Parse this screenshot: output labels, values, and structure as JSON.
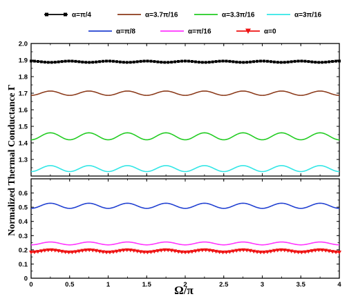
{
  "chart_data": {
    "type": "line",
    "xlabel": "Ω/π",
    "ylabel": "Normalized Thermal Conductance Γ",
    "xlim": [
      0,
      4
    ],
    "x_ticks": [
      "0",
      "0.5",
      "1",
      "1.5",
      "2",
      "2.5",
      "3",
      "3.5",
      "4"
    ],
    "grid": false,
    "legend_position": "top",
    "panels": [
      {
        "name": "upper",
        "ylim": [
          1.2,
          2.0
        ],
        "y_ticks": [
          "1.3",
          "1.4",
          "1.5",
          "1.6",
          "1.7",
          "1.8",
          "1.9",
          "2.0"
        ]
      },
      {
        "name": "lower",
        "ylim": [
          0.0,
          0.7
        ],
        "y_ticks": [
          "0",
          "0.1",
          "0.2",
          "0.3",
          "0.4",
          "0.5",
          "0.6"
        ]
      }
    ],
    "series": [
      {
        "name": "α=π/4",
        "color": "#000000",
        "marker": "square",
        "panel": "upper",
        "mean": 1.89,
        "amplitude": 0.004,
        "cycles": 8,
        "phase": 0.0
      },
      {
        "name": "α=3.7π/16",
        "color": "#8B3A1A",
        "marker": "none",
        "panel": "upper",
        "mean": 1.7,
        "amplitude": 0.013,
        "cycles": 8,
        "phase": 0.5
      },
      {
        "name": "α=3.3π/16",
        "color": "#22CC22",
        "marker": "none",
        "panel": "upper",
        "mean": 1.44,
        "amplitude": 0.021,
        "cycles": 8,
        "phase": 0.5
      },
      {
        "name": "α=3π/16",
        "color": "#33E6E6",
        "marker": "none",
        "panel": "upper",
        "mean": 1.245,
        "amplitude": 0.018,
        "cycles": 8,
        "phase": 0.5
      },
      {
        "name": "α=π/8",
        "color": "#1F3FD1",
        "marker": "none",
        "panel": "lower",
        "mean": 0.51,
        "amplitude": 0.018,
        "cycles": 8,
        "phase": 0.5
      },
      {
        "name": "α=π/16",
        "color": "#FF33FF",
        "marker": "none",
        "panel": "lower",
        "mean": 0.245,
        "amplitude": 0.01,
        "cycles": 8,
        "phase": 0.5
      },
      {
        "name": "α=0",
        "color": "#EE1111",
        "marker": "triangle-down",
        "panel": "lower",
        "mean": 0.19,
        "amplitude": 0.008,
        "cycles": 8,
        "phase": 0.5
      }
    ]
  }
}
